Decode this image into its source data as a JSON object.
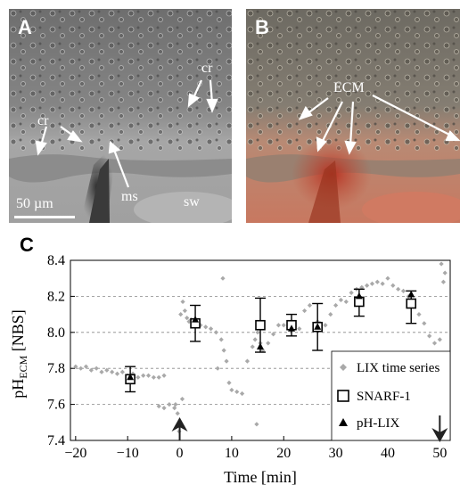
{
  "panels": {
    "a": {
      "letter": "A",
      "labels": {
        "cr_top": "cr",
        "cr_left": "cr",
        "ms": "ms",
        "sw": "sw",
        "scale": "50 µm"
      }
    },
    "b": {
      "letter": "B",
      "labels": {
        "ecm": "ECM"
      }
    },
    "c": {
      "letter": "C"
    }
  },
  "colors": {
    "lix_series": "#a9a9a9",
    "markers": "#000000",
    "grid": "#888888"
  },
  "chart_data": {
    "type": "scatter",
    "title": "",
    "xlabel": "Time [min]",
    "ylabel_main": "pH",
    "ylabel_sub": "ECM",
    "ylabel_unit": " [NBS]",
    "xlim": [
      -21,
      52
    ],
    "ylim": [
      7.4,
      8.4
    ],
    "xticks": [
      -20,
      -10,
      0,
      10,
      20,
      30,
      40,
      50
    ],
    "yticks": [
      7.4,
      7.6,
      7.8,
      8.0,
      8.2,
      8.4
    ],
    "ytick_labels": [
      "7.4",
      "7.6",
      "7.8",
      "8.0",
      "8.2",
      "8.4"
    ],
    "grid": "horizontal dashed",
    "legend_position": "bottom-right",
    "legend": [
      "LIX time series",
      "SNARF-1",
      "pH-LIX"
    ],
    "arrows": [
      {
        "x": 0,
        "direction": "up"
      },
      {
        "x": 50,
        "direction": "down"
      }
    ],
    "series": [
      {
        "name": "LIX time series",
        "marker": "diamond",
        "x": [
          -20,
          -19,
          -18,
          -17,
          -16,
          -15,
          -14,
          -13,
          -12,
          -11,
          -10,
          -9,
          -8,
          -7,
          -6,
          -5,
          -4,
          -3,
          -0.8,
          -0.4,
          -0.1,
          0.2,
          0.6,
          1,
          1.4,
          1.8,
          2.2,
          3,
          4,
          5,
          6,
          7,
          8,
          8.5,
          9,
          9.5,
          10,
          11,
          12,
          13,
          14,
          14.5,
          15,
          15.5,
          16,
          17,
          18,
          19,
          20,
          21,
          22,
          23,
          24,
          25,
          26,
          26.5,
          27,
          28,
          29,
          30,
          31,
          32,
          33,
          34,
          35,
          36,
          37,
          38,
          39,
          40,
          41,
          42,
          43,
          44,
          45,
          46,
          47,
          48,
          49,
          50,
          -4,
          -3,
          -2,
          -1,
          0.5,
          3.3,
          7.3,
          8.3,
          14.8,
          50.3,
          50.7,
          51
        ],
        "y": [
          7.81,
          7.8,
          7.81,
          7.79,
          7.8,
          7.78,
          7.79,
          7.78,
          7.77,
          7.78,
          7.76,
          7.77,
          7.75,
          7.76,
          7.76,
          7.75,
          7.75,
          7.76,
          7.6,
          7.55,
          7.45,
          8.1,
          8.17,
          8.12,
          8.08,
          8.06,
          8.07,
          8.05,
          8.04,
          8.03,
          8.02,
          8.0,
          7.96,
          7.9,
          7.84,
          7.72,
          7.68,
          7.67,
          7.66,
          7.84,
          7.92,
          7.96,
          8.0,
          7.94,
          7.9,
          7.94,
          7.99,
          8.04,
          8.04,
          8.03,
          8.05,
          8.02,
          8.12,
          8.15,
          8.03,
          8.06,
          8.05,
          8.04,
          8.1,
          8.15,
          8.18,
          8.17,
          8.22,
          8.24,
          8.25,
          8.26,
          8.27,
          8.28,
          8.27,
          8.3,
          8.26,
          8.24,
          8.23,
          8.2,
          8.17,
          8.1,
          8.05,
          7.98,
          7.94,
          7.96,
          7.59,
          7.58,
          7.6,
          7.58,
          7.63,
          8.05,
          7.8,
          8.3,
          7.49,
          8.38,
          8.28,
          8.33
        ]
      },
      {
        "name": "SNARF-1",
        "marker": "open-square",
        "points": [
          {
            "x": -9.5,
            "y": 7.74,
            "lo": 7.67,
            "hi": 7.81
          },
          {
            "x": 3,
            "y": 8.05,
            "lo": 7.95,
            "hi": 8.15
          },
          {
            "x": 15.5,
            "y": 8.04,
            "lo": 7.89,
            "hi": 8.19
          },
          {
            "x": 21.5,
            "y": 8.04,
            "lo": 7.98,
            "hi": 8.1
          },
          {
            "x": 26.5,
            "y": 8.03,
            "lo": 7.9,
            "hi": 8.16
          },
          {
            "x": 34.5,
            "y": 8.17,
            "lo": 8.09,
            "hi": 8.24
          },
          {
            "x": 44.5,
            "y": 8.16,
            "lo": 8.05,
            "hi": 8.23
          }
        ]
      },
      {
        "name": "pH-LIX",
        "marker": "filled-triangle",
        "points": [
          {
            "x": -9.5,
            "y": 7.75
          },
          {
            "x": 3,
            "y": 8.07
          },
          {
            "x": 15.5,
            "y": 7.92
          },
          {
            "x": 21.5,
            "y": 8.02
          },
          {
            "x": 26.5,
            "y": 8.03
          },
          {
            "x": 34.5,
            "y": 8.2
          },
          {
            "x": 44.5,
            "y": 8.21
          }
        ]
      }
    ]
  }
}
